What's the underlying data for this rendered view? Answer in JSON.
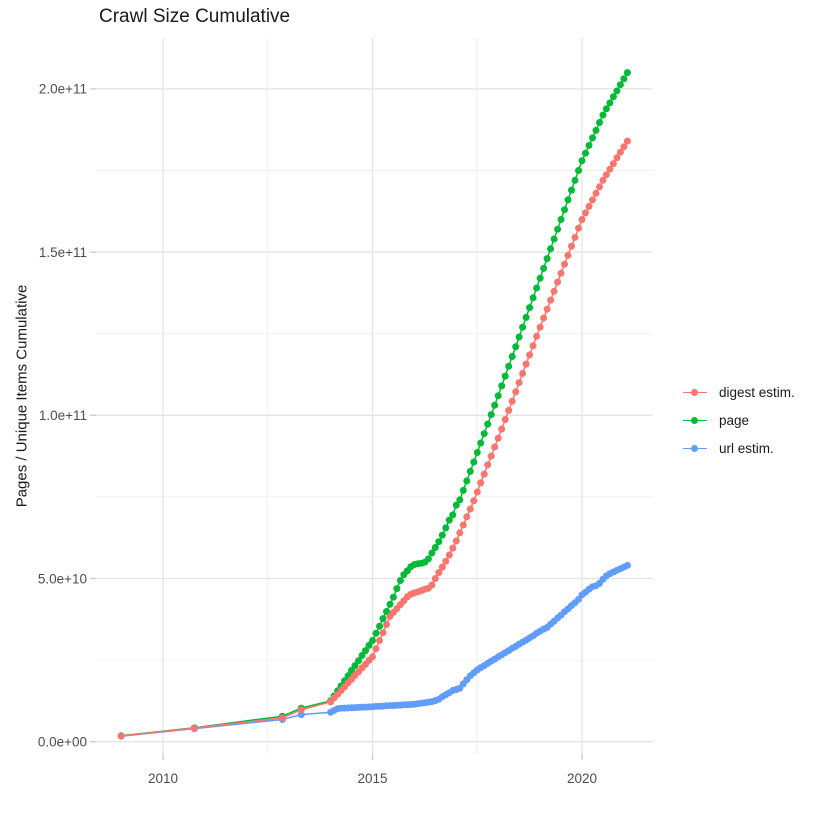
{
  "chart_data": {
    "type": "line",
    "title": "Crawl Size Cumulative",
    "xlabel": "",
    "ylabel": "Pages / Unique Items Cumulative",
    "value_unit_note": "y values stored in billions (1e9) of pages / unique items",
    "xlim_years": [
      2008.4,
      2021.7
    ],
    "ylim_billions": [
      -8,
      215
    ],
    "grid": true,
    "legend_position": "right",
    "x_ticks": [
      {
        "label": "2010",
        "year": 2010
      },
      {
        "label": "2015",
        "year": 2015
      },
      {
        "label": "2020",
        "year": 2020
      }
    ],
    "x_minor_years": [
      2012.5,
      2017.5
    ],
    "y_ticks": [
      {
        "label": "0.0e+00",
        "billions": 0
      },
      {
        "label": "5.0e+10",
        "billions": 50
      },
      {
        "label": "1.0e+11",
        "billions": 100
      },
      {
        "label": "1.5e+11",
        "billions": 150
      },
      {
        "label": "2.0e+11",
        "billions": 200
      }
    ],
    "y_minor_billions": [
      25,
      75,
      125,
      175
    ],
    "series": [
      {
        "name": "digest estim.",
        "color": "#F8766D",
        "points": [
          [
            2009.0,
            1.7
          ],
          [
            2010.75,
            4.2
          ],
          [
            2012.85,
            7.3
          ],
          [
            2013.3,
            9.8
          ],
          [
            2014.0,
            12.2
          ],
          [
            2014.083,
            13.4
          ],
          [
            2014.167,
            14.5
          ],
          [
            2014.25,
            15.7
          ],
          [
            2014.333,
            16.8
          ],
          [
            2014.417,
            18.0
          ],
          [
            2014.5,
            19.1
          ],
          [
            2014.583,
            20.3
          ],
          [
            2014.667,
            21.4
          ],
          [
            2014.75,
            22.6
          ],
          [
            2014.833,
            23.7
          ],
          [
            2014.917,
            24.9
          ],
          [
            2015.0,
            26.0
          ],
          [
            2015.083,
            28.5
          ],
          [
            2015.167,
            31.0
          ],
          [
            2015.25,
            33.4
          ],
          [
            2015.333,
            35.9
          ],
          [
            2015.417,
            38.4
          ],
          [
            2015.5,
            39.6
          ],
          [
            2015.583,
            40.8
          ],
          [
            2015.667,
            42.0
          ],
          [
            2015.75,
            43.2
          ],
          [
            2015.833,
            44.4
          ],
          [
            2015.917,
            45.2
          ],
          [
            2016.0,
            45.6
          ],
          [
            2016.083,
            45.9
          ],
          [
            2016.167,
            46.3
          ],
          [
            2016.25,
            46.7
          ],
          [
            2016.333,
            47.0
          ],
          [
            2016.417,
            48.0
          ],
          [
            2016.5,
            50.0
          ],
          [
            2016.583,
            51.8
          ],
          [
            2016.667,
            53.5
          ],
          [
            2016.75,
            55.3
          ],
          [
            2016.833,
            57.2
          ],
          [
            2016.917,
            59.3
          ],
          [
            2017.0,
            61.5
          ],
          [
            2017.083,
            64.0
          ],
          [
            2017.167,
            66.4
          ],
          [
            2017.25,
            68.9
          ],
          [
            2017.333,
            71.3
          ],
          [
            2017.417,
            73.8
          ],
          [
            2017.5,
            76.5
          ],
          [
            2017.583,
            79.3
          ],
          [
            2017.667,
            82.0
          ],
          [
            2017.75,
            84.8
          ],
          [
            2017.833,
            87.5
          ],
          [
            2017.917,
            90.3
          ],
          [
            2018.0,
            93.0
          ],
          [
            2018.083,
            95.8
          ],
          [
            2018.167,
            98.7
          ],
          [
            2018.25,
            101.5
          ],
          [
            2018.333,
            104.3
          ],
          [
            2018.417,
            107.2
          ],
          [
            2018.5,
            110.0
          ],
          [
            2018.583,
            112.8
          ],
          [
            2018.667,
            115.7
          ],
          [
            2018.75,
            118.5
          ],
          [
            2018.833,
            121.3
          ],
          [
            2018.917,
            124.2
          ],
          [
            2019.0,
            127.0
          ],
          [
            2019.083,
            129.8
          ],
          [
            2019.167,
            132.5
          ],
          [
            2019.25,
            135.3
          ],
          [
            2019.333,
            138.0
          ],
          [
            2019.417,
            140.8
          ],
          [
            2019.5,
            143.5
          ],
          [
            2019.583,
            146.3
          ],
          [
            2019.667,
            149.0
          ],
          [
            2019.75,
            151.8
          ],
          [
            2019.833,
            154.5
          ],
          [
            2019.917,
            157.3
          ],
          [
            2020.0,
            160.0
          ],
          [
            2020.083,
            162.0
          ],
          [
            2020.167,
            164.0
          ],
          [
            2020.25,
            166.0
          ],
          [
            2020.333,
            168.0
          ],
          [
            2020.417,
            170.0
          ],
          [
            2020.5,
            172.0
          ],
          [
            2020.583,
            173.7
          ],
          [
            2020.667,
            175.4
          ],
          [
            2020.75,
            177.1
          ],
          [
            2020.833,
            178.9
          ],
          [
            2020.917,
            180.6
          ],
          [
            2021.0,
            182.3
          ],
          [
            2021.083,
            184.0
          ]
        ]
      },
      {
        "name": "page",
        "color": "#00BA38",
        "points": [
          [
            2009.0,
            1.8
          ],
          [
            2010.75,
            4.3
          ],
          [
            2012.85,
            7.8
          ],
          [
            2013.3,
            10.3
          ],
          [
            2014.0,
            12.5
          ],
          [
            2014.083,
            14.0
          ],
          [
            2014.167,
            15.6
          ],
          [
            2014.25,
            17.1
          ],
          [
            2014.333,
            18.7
          ],
          [
            2014.417,
            20.2
          ],
          [
            2014.5,
            21.8
          ],
          [
            2014.583,
            23.3
          ],
          [
            2014.667,
            24.8
          ],
          [
            2014.75,
            26.4
          ],
          [
            2014.833,
            27.9
          ],
          [
            2014.917,
            29.5
          ],
          [
            2015.0,
            31.0
          ],
          [
            2015.083,
            33.2
          ],
          [
            2015.167,
            35.4
          ],
          [
            2015.25,
            37.7
          ],
          [
            2015.333,
            39.9
          ],
          [
            2015.417,
            42.1
          ],
          [
            2015.5,
            44.3
          ],
          [
            2015.583,
            46.9
          ],
          [
            2015.667,
            49.4
          ],
          [
            2015.75,
            51.2
          ],
          [
            2015.833,
            52.4
          ],
          [
            2015.917,
            53.6
          ],
          [
            2016.0,
            54.3
          ],
          [
            2016.083,
            54.5
          ],
          [
            2016.167,
            54.7
          ],
          [
            2016.25,
            55.0
          ],
          [
            2016.333,
            56.0
          ],
          [
            2016.417,
            57.8
          ],
          [
            2016.5,
            59.5
          ],
          [
            2016.583,
            61.3
          ],
          [
            2016.667,
            63.3
          ],
          [
            2016.75,
            65.5
          ],
          [
            2016.833,
            67.9
          ],
          [
            2016.917,
            69.5
          ],
          [
            2017.0,
            72.5
          ],
          [
            2017.083,
            74.1
          ],
          [
            2017.167,
            77.0
          ],
          [
            2017.25,
            79.9
          ],
          [
            2017.333,
            82.8
          ],
          [
            2017.417,
            85.7
          ],
          [
            2017.5,
            88.6
          ],
          [
            2017.583,
            91.5
          ],
          [
            2017.667,
            94.4
          ],
          [
            2017.75,
            97.3
          ],
          [
            2017.833,
            100.2
          ],
          [
            2017.917,
            103.1
          ],
          [
            2018.0,
            106.0
          ],
          [
            2018.083,
            109.0
          ],
          [
            2018.167,
            112.0
          ],
          [
            2018.25,
            115.0
          ],
          [
            2018.333,
            118.0
          ],
          [
            2018.417,
            121.0
          ],
          [
            2018.5,
            124.0
          ],
          [
            2018.583,
            127.0
          ],
          [
            2018.667,
            130.0
          ],
          [
            2018.75,
            133.0
          ],
          [
            2018.833,
            136.0
          ],
          [
            2018.917,
            139.0
          ],
          [
            2019.0,
            142.0
          ],
          [
            2019.083,
            145.0
          ],
          [
            2019.167,
            148.0
          ],
          [
            2019.25,
            151.0
          ],
          [
            2019.333,
            154.0
          ],
          [
            2019.417,
            157.0
          ],
          [
            2019.5,
            160.0
          ],
          [
            2019.583,
            163.0
          ],
          [
            2019.667,
            166.0
          ],
          [
            2019.75,
            169.0
          ],
          [
            2019.833,
            172.0
          ],
          [
            2019.917,
            175.0
          ],
          [
            2020.0,
            178.0
          ],
          [
            2020.083,
            180.3
          ],
          [
            2020.167,
            182.7
          ],
          [
            2020.25,
            185.0
          ],
          [
            2020.333,
            187.3
          ],
          [
            2020.417,
            189.7
          ],
          [
            2020.5,
            192.0
          ],
          [
            2020.583,
            193.9
          ],
          [
            2020.667,
            195.7
          ],
          [
            2020.75,
            197.6
          ],
          [
            2020.833,
            199.4
          ],
          [
            2020.917,
            201.3
          ],
          [
            2021.0,
            203.1
          ],
          [
            2021.083,
            205.0
          ]
        ]
      },
      {
        "name": "url estim.",
        "color": "#619CFF",
        "points": [
          [
            2009.0,
            1.7
          ],
          [
            2010.75,
            4.0
          ],
          [
            2012.85,
            6.8
          ],
          [
            2013.3,
            8.3
          ],
          [
            2014.0,
            9.0
          ],
          [
            2014.083,
            9.6
          ],
          [
            2014.167,
            10.1
          ],
          [
            2014.25,
            10.25
          ],
          [
            2014.333,
            10.3
          ],
          [
            2014.417,
            10.35
          ],
          [
            2014.5,
            10.4
          ],
          [
            2014.583,
            10.45
          ],
          [
            2014.667,
            10.5
          ],
          [
            2014.75,
            10.55
          ],
          [
            2014.833,
            10.6
          ],
          [
            2014.917,
            10.65
          ],
          [
            2015.0,
            10.7
          ],
          [
            2015.083,
            10.8
          ],
          [
            2015.167,
            10.85
          ],
          [
            2015.25,
            10.9
          ],
          [
            2015.333,
            11.0
          ],
          [
            2015.417,
            11.05
          ],
          [
            2015.5,
            11.1
          ],
          [
            2015.583,
            11.15
          ],
          [
            2015.667,
            11.2
          ],
          [
            2015.75,
            11.3
          ],
          [
            2015.833,
            11.35
          ],
          [
            2015.917,
            11.4
          ],
          [
            2016.0,
            11.5
          ],
          [
            2016.083,
            11.65
          ],
          [
            2016.167,
            11.8
          ],
          [
            2016.25,
            11.95
          ],
          [
            2016.333,
            12.1
          ],
          [
            2016.417,
            12.25
          ],
          [
            2016.5,
            12.6
          ],
          [
            2016.583,
            13.0
          ],
          [
            2016.667,
            13.8
          ],
          [
            2016.75,
            14.4
          ],
          [
            2016.833,
            15.0
          ],
          [
            2016.917,
            15.7
          ],
          [
            2017.0,
            16.0
          ],
          [
            2017.083,
            16.4
          ],
          [
            2017.167,
            17.7
          ],
          [
            2017.25,
            19.0
          ],
          [
            2017.333,
            20.2
          ],
          [
            2017.417,
            21.1
          ],
          [
            2017.5,
            22.0
          ],
          [
            2017.583,
            22.7
          ],
          [
            2017.667,
            23.3
          ],
          [
            2017.75,
            24.0
          ],
          [
            2017.833,
            24.7
          ],
          [
            2017.917,
            25.3
          ],
          [
            2018.0,
            26.0
          ],
          [
            2018.083,
            26.6
          ],
          [
            2018.167,
            27.3
          ],
          [
            2018.25,
            27.9
          ],
          [
            2018.333,
            28.6
          ],
          [
            2018.417,
            29.2
          ],
          [
            2018.5,
            29.9
          ],
          [
            2018.583,
            30.5
          ],
          [
            2018.667,
            31.1
          ],
          [
            2018.75,
            31.8
          ],
          [
            2018.833,
            32.4
          ],
          [
            2018.917,
            33.2
          ],
          [
            2019.0,
            33.9
          ],
          [
            2019.083,
            34.5
          ],
          [
            2019.167,
            35.0
          ],
          [
            2019.25,
            36.0
          ],
          [
            2019.333,
            36.9
          ],
          [
            2019.417,
            37.9
          ],
          [
            2019.5,
            38.8
          ],
          [
            2019.583,
            39.8
          ],
          [
            2019.667,
            40.7
          ],
          [
            2019.75,
            41.7
          ],
          [
            2019.833,
            42.6
          ],
          [
            2019.917,
            43.6
          ],
          [
            2020.0,
            45.0
          ],
          [
            2020.083,
            45.8
          ],
          [
            2020.167,
            46.7
          ],
          [
            2020.25,
            47.5
          ],
          [
            2020.333,
            47.8
          ],
          [
            2020.417,
            48.5
          ],
          [
            2020.5,
            49.8
          ],
          [
            2020.583,
            50.8
          ],
          [
            2020.667,
            51.5
          ],
          [
            2020.75,
            52.0
          ],
          [
            2020.833,
            52.5
          ],
          [
            2020.917,
            53.0
          ],
          [
            2021.0,
            53.5
          ],
          [
            2021.083,
            54.0
          ]
        ]
      }
    ]
  }
}
